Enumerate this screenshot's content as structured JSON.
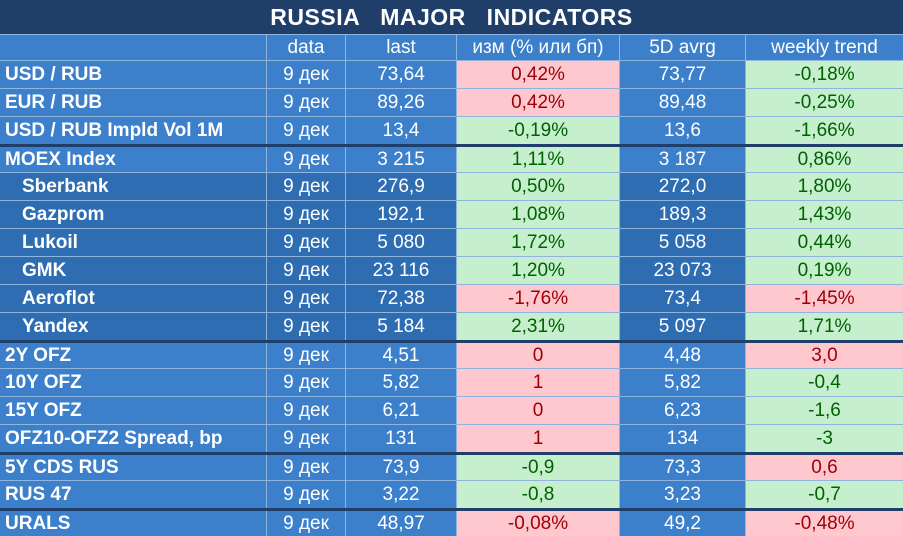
{
  "title": "RUSSIA MAJOR INDICATORS",
  "colors": {
    "header_bg": "#1f3e6a",
    "cell_bg": "#3c7fcb",
    "positive_bg": "#c6efce",
    "positive_text": "#006100",
    "negative_bg": "#ffc7ce",
    "negative_text": "#9c0006"
  },
  "columns": [
    "",
    "data",
    "last",
    "изм (% или бп)",
    "5D avrg",
    "weekly trend"
  ],
  "rows": [
    {
      "name": "USD / RUB",
      "indent": false,
      "sep": false,
      "date": "9 дек",
      "last": "73,64",
      "chg": "0,42%",
      "chg_sign": "neg",
      "avg": "73,77",
      "trend": "-0,18%",
      "trend_sign": "pos"
    },
    {
      "name": "EUR / RUB",
      "indent": false,
      "sep": false,
      "date": "9 дек",
      "last": "89,26",
      "chg": "0,42%",
      "chg_sign": "neg",
      "avg": "89,48",
      "trend": "-0,25%",
      "trend_sign": "pos"
    },
    {
      "name": "USD / RUB Impld Vol 1M",
      "indent": false,
      "sep": false,
      "date": "9 дек",
      "last": "13,4",
      "chg": "-0,19%",
      "chg_sign": "pos",
      "avg": "13,6",
      "trend": "-1,66%",
      "trend_sign": "pos"
    },
    {
      "name": "MOEX Index",
      "indent": false,
      "sep": true,
      "date": "9 дек",
      "last": "3 215",
      "chg": "1,11%",
      "chg_sign": "pos",
      "avg": "3 187",
      "trend": "0,86%",
      "trend_sign": "pos"
    },
    {
      "name": "Sberbank",
      "indent": true,
      "sep": false,
      "date": "9 дек",
      "last": "276,9",
      "chg": "0,50%",
      "chg_sign": "pos",
      "avg": "272,0",
      "trend": "1,80%",
      "trend_sign": "pos"
    },
    {
      "name": "Gazprom",
      "indent": true,
      "sep": false,
      "date": "9 дек",
      "last": "192,1",
      "chg": "1,08%",
      "chg_sign": "pos",
      "avg": "189,3",
      "trend": "1,43%",
      "trend_sign": "pos"
    },
    {
      "name": "Lukoil",
      "indent": true,
      "sep": false,
      "date": "9 дек",
      "last": "5 080",
      "chg": "1,72%",
      "chg_sign": "pos",
      "avg": "5 058",
      "trend": "0,44%",
      "trend_sign": "pos"
    },
    {
      "name": "GMK",
      "indent": true,
      "sep": false,
      "date": "9 дек",
      "last": "23 116",
      "chg": "1,20%",
      "chg_sign": "pos",
      "avg": "23 073",
      "trend": "0,19%",
      "trend_sign": "pos"
    },
    {
      "name": "Aeroflot",
      "indent": true,
      "sep": false,
      "date": "9 дек",
      "last": "72,38",
      "chg": "-1,76%",
      "chg_sign": "neg",
      "avg": "73,4",
      "trend": "-1,45%",
      "trend_sign": "neg"
    },
    {
      "name": "Yandex",
      "indent": true,
      "sep": false,
      "date": "9 дек",
      "last": "5 184",
      "chg": "2,31%",
      "chg_sign": "pos",
      "avg": "5 097",
      "trend": "1,71%",
      "trend_sign": "pos"
    },
    {
      "name": "2Y OFZ",
      "indent": false,
      "sep": true,
      "date": "9 дек",
      "last": "4,51",
      "chg": "0",
      "chg_sign": "neg",
      "avg": "4,48",
      "trend": "3,0",
      "trend_sign": "neg"
    },
    {
      "name": "10Y OFZ",
      "indent": false,
      "sep": false,
      "date": "9 дек",
      "last": "5,82",
      "chg": "1",
      "chg_sign": "neg",
      "avg": "5,82",
      "trend": "-0,4",
      "trend_sign": "pos"
    },
    {
      "name": "15Y OFZ",
      "indent": false,
      "sep": false,
      "date": "9 дек",
      "last": "6,21",
      "chg": "0",
      "chg_sign": "neg",
      "avg": "6,23",
      "trend": "-1,6",
      "trend_sign": "pos"
    },
    {
      "name": "OFZ10-OFZ2 Spread, bp",
      "indent": false,
      "sep": false,
      "date": "9 дек",
      "last": "131",
      "chg": "1",
      "chg_sign": "neg",
      "avg": "134",
      "trend": "-3",
      "trend_sign": "pos"
    },
    {
      "name": "5Y CDS RUS",
      "indent": false,
      "sep": true,
      "date": "9 дек",
      "last": "73,9",
      "chg": "-0,9",
      "chg_sign": "pos",
      "avg": "73,3",
      "trend": "0,6",
      "trend_sign": "neg"
    },
    {
      "name": "RUS 47",
      "indent": false,
      "sep": false,
      "date": "9 дек",
      "last": "3,22",
      "chg": "-0,8",
      "chg_sign": "pos",
      "avg": "3,23",
      "trend": "-0,7",
      "trend_sign": "pos"
    },
    {
      "name": "URALS",
      "indent": false,
      "sep": true,
      "date": "9 дек",
      "last": "48,97",
      "chg": "-0,08%",
      "chg_sign": "neg",
      "avg": "49,2",
      "trend": "-0,48%",
      "trend_sign": "neg"
    }
  ]
}
